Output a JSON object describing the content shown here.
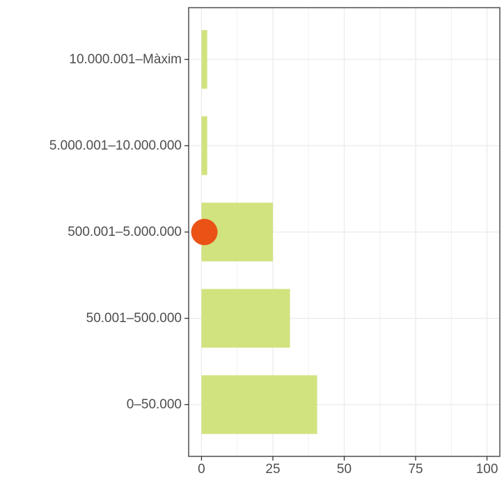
{
  "chart_data": {
    "type": "bar",
    "orientation": "horizontal",
    "categories": [
      "0–50.000",
      "50.001–500.000",
      "500.001–5.000.000",
      "5.000.001–10.000.000",
      "10.000.001–Màxim"
    ],
    "values": [
      40.5,
      31,
      25,
      2,
      2
    ],
    "xlim": [
      -4.5,
      104.5
    ],
    "x_ticks": [
      0,
      25,
      50,
      75,
      100
    ],
    "x_tick_labels": [
      "0",
      "25",
      "50",
      "75",
      "100"
    ],
    "title": "",
    "xlabel": "",
    "ylabel": "",
    "grid": true,
    "bar_color": "#d1e37e",
    "highlight": {
      "category": "500.001–5.000.000",
      "value": 1,
      "color": "#eb5216"
    }
  }
}
